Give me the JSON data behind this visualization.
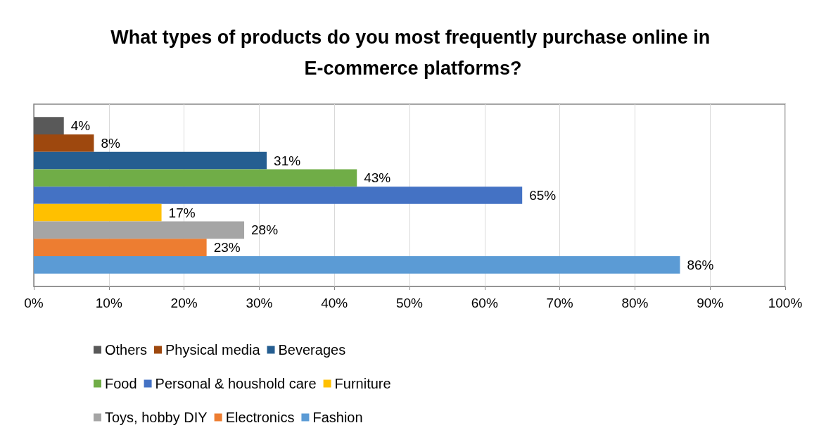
{
  "chart_data": {
    "type": "bar",
    "orientation": "horizontal",
    "title": "What types of products do you most frequently purchase online in E-commerce platforms?",
    "categories": [
      null
    ],
    "series": [
      {
        "name": "Others",
        "color": "#595959",
        "values": [
          4
        ],
        "value_labels": [
          "4%"
        ]
      },
      {
        "name": "Physical media",
        "color": "#9e480e",
        "values": [
          8
        ],
        "value_labels": [
          "8%"
        ]
      },
      {
        "name": "Beverages",
        "color": "#255e91",
        "values": [
          31
        ],
        "value_labels": [
          "31%"
        ]
      },
      {
        "name": "Food",
        "color": "#70ad47",
        "values": [
          43
        ],
        "value_labels": [
          "43%"
        ]
      },
      {
        "name": "Personal & houshold care",
        "color": "#4472c4",
        "values": [
          65
        ],
        "value_labels": [
          "65%"
        ]
      },
      {
        "name": "Furniture",
        "color": "#ffc000",
        "values": [
          17
        ],
        "value_labels": [
          "17%"
        ]
      },
      {
        "name": "Toys, hobby DIY",
        "color": "#a5a5a5",
        "values": [
          28
        ],
        "value_labels": [
          "28%"
        ]
      },
      {
        "name": "Electronics",
        "color": "#ed7d31",
        "values": [
          23
        ],
        "value_labels": [
          "23%"
        ]
      },
      {
        "name": "Fashion",
        "color": "#5b9bd5",
        "values": [
          86
        ],
        "value_labels": [
          "86%"
        ]
      }
    ],
    "xlim": [
      0,
      100
    ],
    "xticks": [
      {
        "value": 0,
        "label": "0%"
      },
      {
        "value": 10,
        "label": "10%"
      },
      {
        "value": 20,
        "label": "20%"
      },
      {
        "value": 30,
        "label": "30%"
      },
      {
        "value": 40,
        "label": "40%"
      },
      {
        "value": 50,
        "label": "50%"
      },
      {
        "value": 60,
        "label": "60%"
      },
      {
        "value": 70,
        "label": "70%"
      },
      {
        "value": 80,
        "label": "80%"
      },
      {
        "value": 90,
        "label": "90%"
      },
      {
        "value": 100,
        "label": "100%"
      }
    ],
    "grid": "x",
    "legend": "bottom"
  }
}
